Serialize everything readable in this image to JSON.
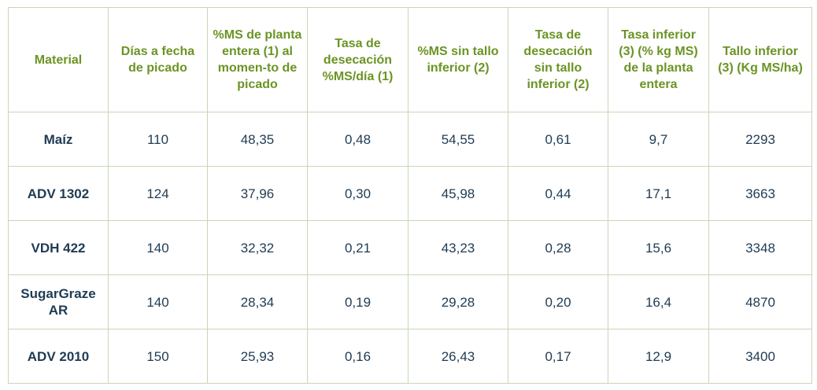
{
  "table": {
    "headers": [
      "Material",
      "Días a fecha de picado",
      "%MS de planta entera (1) al momen-to de picado",
      "Tasa de desecación %MS/día (1)",
      "%MS sin tallo inferior (2)",
      "Tasa de desecación sin tallo inferior (2)",
      "Tasa inferior (3) (% kg MS) de la planta entera",
      "Tallo inferior (3) (Kg MS/ha)"
    ],
    "rows": [
      [
        "Maíz",
        "110",
        "48,35",
        "0,48",
        "54,55",
        "0,61",
        "9,7",
        "2293"
      ],
      [
        "ADV 1302",
        "124",
        "37,96",
        "0,30",
        "45,98",
        "0,44",
        "17,1",
        "3663"
      ],
      [
        "VDH 422",
        "140",
        "32,32",
        "0,21",
        "43,23",
        "0,28",
        "15,6",
        "3348"
      ],
      [
        "SugarGraze AR",
        "140",
        "28,34",
        "0,19",
        "29,28",
        "0,20",
        "16,4",
        "4870"
      ],
      [
        "ADV 2010",
        "150",
        "25,93",
        "0,16",
        "26,43",
        "0,17",
        "12,9",
        "3400"
      ]
    ]
  },
  "colors": {
    "header_text": "#6b9424",
    "body_text": "#1f3b53",
    "border": "#c9d6b8"
  }
}
